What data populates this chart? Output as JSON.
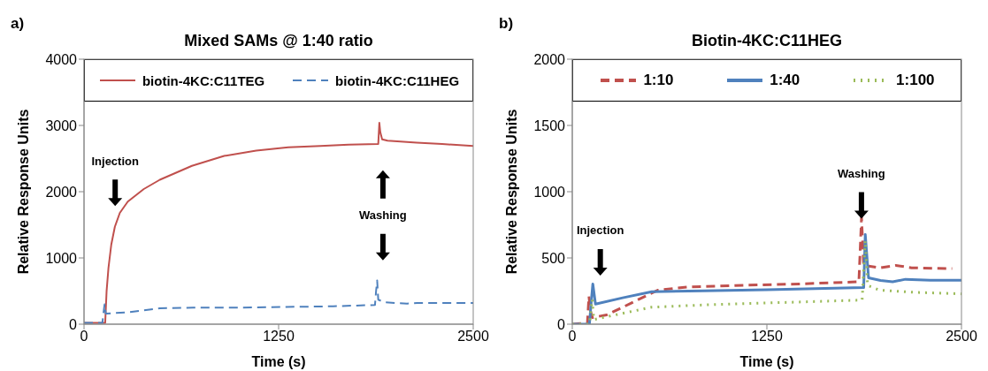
{
  "chart_data": [
    {
      "type": "line",
      "title": "Mixed SAMs @ 1:40 ratio",
      "xlabel": "Time (s)",
      "ylabel": "Relative Response Units",
      "xlim": [
        0,
        2500
      ],
      "xticks": [
        0,
        1250,
        2500
      ],
      "ylim": [
        0,
        4000
      ],
      "yticks": [
        0,
        1000,
        2000,
        3000,
        4000
      ],
      "legend": "top",
      "marker": "none",
      "annotations": [
        "a)",
        "Injection",
        "Washing"
      ],
      "series": [
        {
          "name": "biotin-4KC:C11TEG",
          "color": "#c0504d",
          "line_style": "solid",
          "x": [
            0,
            60,
            120,
            136,
            145,
            157,
            175,
            198,
            230,
            281,
            384,
            487,
            693,
            900,
            1106,
            1312,
            1518,
            1700,
            1890,
            1897,
            1903,
            1915,
            1950,
            2137,
            2300,
            2500
          ],
          "values": [
            20,
            20,
            20,
            20,
            500,
            850,
            1200,
            1470,
            1680,
            1850,
            2040,
            2180,
            2390,
            2540,
            2620,
            2670,
            2690,
            2710,
            2720,
            3040,
            2900,
            2790,
            2770,
            2740,
            2720,
            2690
          ]
        },
        {
          "name": "biotin-4KC:C11HEG",
          "color": "#4f81bd",
          "line_style": "dashed",
          "x": [
            0,
            60,
            118,
            124,
            132,
            140,
            146,
            200,
            281,
            487,
            700,
            1000,
            1300,
            1600,
            1869,
            1876,
            1883,
            1890,
            1931,
            2000,
            2075,
            2140,
            2300,
            2500
          ],
          "values": [
            20,
            20,
            20,
            150,
            300,
            160,
            160,
            170,
            180,
            240,
            250,
            250,
            260,
            270,
            290,
            500,
            660,
            370,
            330,
            320,
            310,
            320,
            320,
            320
          ]
        }
      ]
    },
    {
      "type": "line",
      "title": "Biotin-4KC:C11HEG",
      "xlabel": "Time (s)",
      "ylabel": "Relative Response Units",
      "xlim": [
        0,
        2500
      ],
      "xticks": [
        0,
        1250,
        2500
      ],
      "ylim": [
        0,
        2000
      ],
      "yticks": [
        0,
        500,
        1000,
        1500,
        2000
      ],
      "legend": "top",
      "marker": "none",
      "annotations": [
        "b)",
        "Injection",
        "Washing"
      ],
      "series": [
        {
          "name": "1:10",
          "color": "#c0504d",
          "line_style": "dashed",
          "x": [
            0,
            50,
            97,
            107,
            117,
            128,
            221,
            324,
            427,
            551,
            737,
            1046,
            1459,
            1841,
            1858,
            1872,
            1975,
            2078,
            2180,
            2440
          ],
          "values": [
            0,
            5,
            5,
            210,
            100,
            50,
            70,
            128,
            187,
            257,
            280,
            292,
            304,
            320,
            806,
            444,
            425,
            444,
            425,
            420
          ]
        },
        {
          "name": "1:40",
          "color": "#4f81bd",
          "line_style": "solid",
          "x": [
            0,
            60,
            110,
            124,
            132,
            149,
            324,
            510,
            840,
            1250,
            1872,
            1882,
            1903,
            1980,
            2058,
            2140,
            2300,
            2500
          ],
          "values": [
            0,
            0,
            0,
            200,
            304,
            152,
            199,
            245,
            252,
            260,
            276,
            677,
            350,
            330,
            320,
            339,
            332,
            332
          ]
        },
        {
          "name": "1:100",
          "color": "#9bbb59",
          "line_style": "dotted",
          "x": [
            0,
            60,
            110,
            120,
            128,
            138,
            324,
            510,
            840,
            1250,
            1862,
            1882,
            1897,
            1975,
            2200,
            2500
          ],
          "values": [
            0,
            0,
            0,
            100,
            187,
            35,
            82,
            128,
            145,
            160,
            182,
            631,
            292,
            257,
            240,
            229
          ]
        }
      ]
    }
  ]
}
